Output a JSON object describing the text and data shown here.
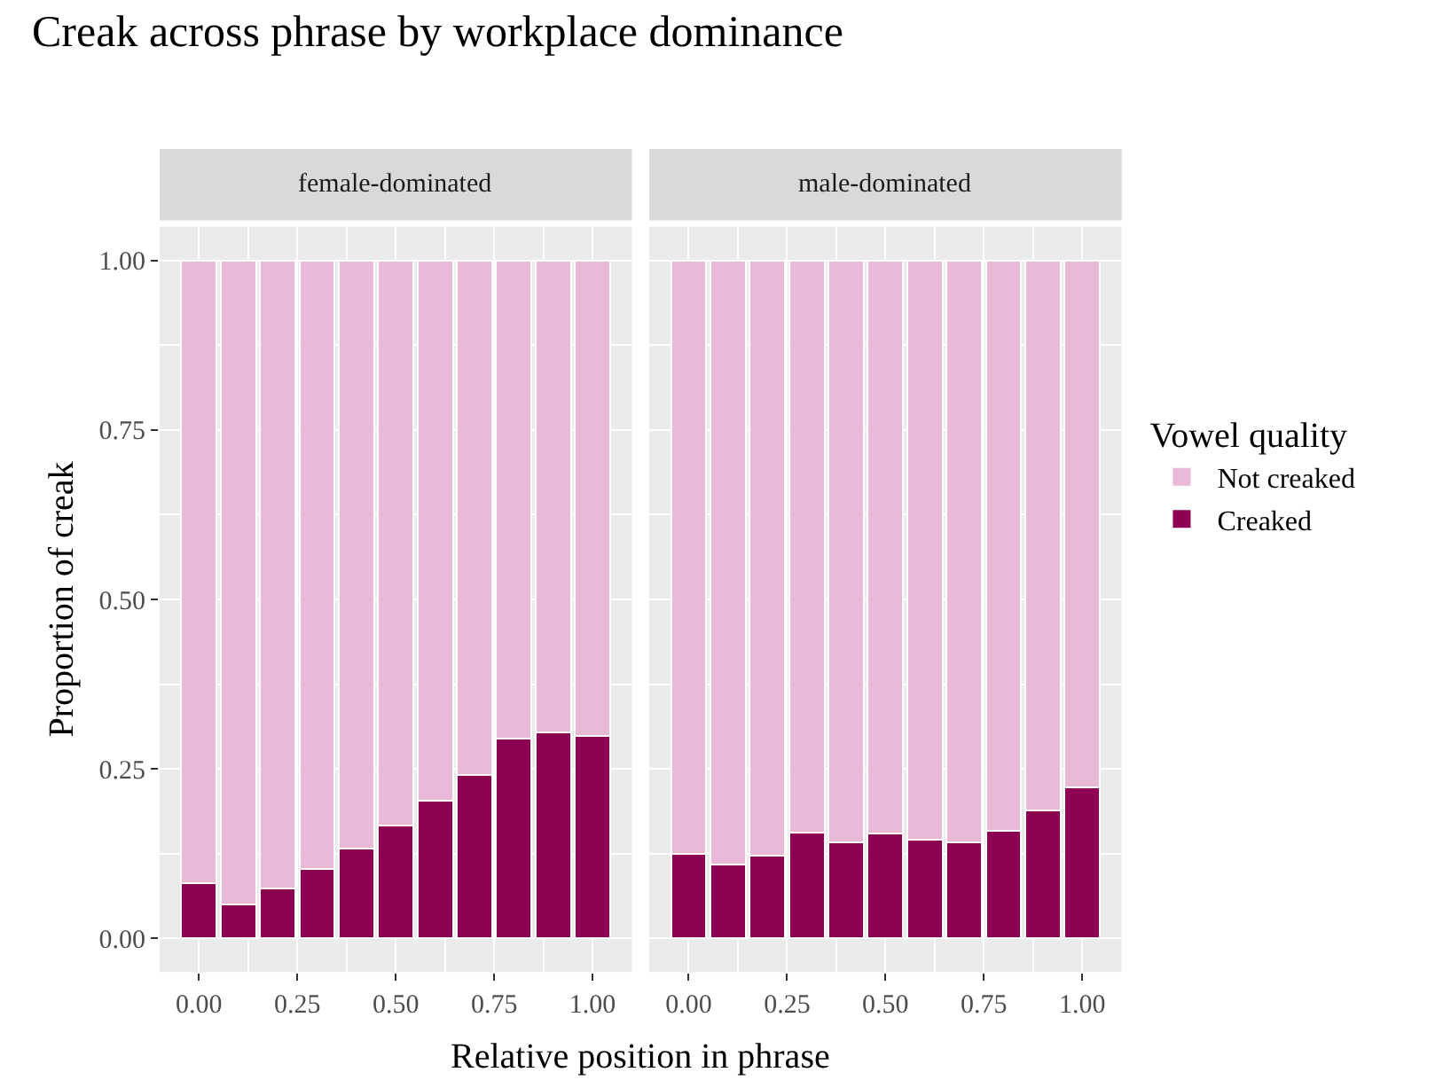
{
  "chart_data": [
    {
      "type": "bar",
      "title": "Creak across phrase by workplace dominance",
      "subtitle": "female-dominated",
      "xlabel": "Relative position in phrase",
      "ylabel": "Proportion of creak",
      "legend_title": "Vowel quality",
      "legend": "right",
      "stacked": true,
      "x": [
        0,
        0.1,
        0.2,
        0.3,
        0.4,
        0.5,
        0.6,
        0.7,
        0.8,
        0.9,
        1.0
      ],
      "series": [
        {
          "name": "Creaked",
          "color": "#8e0152",
          "values": [
            0.081,
            0.05,
            0.073,
            0.102,
            0.132,
            0.166,
            0.203,
            0.241,
            0.294,
            0.304,
            0.299
          ]
        },
        {
          "name": "Not creaked",
          "color": "#ebb9d8",
          "values": [
            0.919,
            0.95,
            0.927,
            0.898,
            0.868,
            0.834,
            0.797,
            0.759,
            0.706,
            0.696,
            0.701
          ]
        }
      ],
      "xlim": [
        -0.1,
        1.1
      ],
      "ylim": [
        -0.05,
        1.05
      ],
      "xticks": [
        {
          "value": 0,
          "label": "0.00"
        },
        {
          "value": 0.25,
          "label": "0.25"
        },
        {
          "value": 0.5,
          "label": "0.50"
        },
        {
          "value": 0.75,
          "label": "0.75"
        },
        {
          "value": 1,
          "label": "1.00"
        }
      ],
      "yticks": [
        {
          "value": 0,
          "label": "0.00"
        },
        {
          "value": 0.25,
          "label": "0.25"
        },
        {
          "value": 0.5,
          "label": "0.50"
        },
        {
          "value": 0.75,
          "label": "0.75"
        },
        {
          "value": 1,
          "label": "1.00"
        }
      ],
      "grid": true
    },
    {
      "type": "bar",
      "subtitle": "male-dominated",
      "stacked": true,
      "x": [
        0,
        0.1,
        0.2,
        0.3,
        0.4,
        0.5,
        0.6,
        0.7,
        0.8,
        0.9,
        1.0
      ],
      "series": [
        {
          "name": "Creaked",
          "color": "#8e0152",
          "values": [
            0.124,
            0.109,
            0.122,
            0.156,
            0.141,
            0.155,
            0.145,
            0.141,
            0.159,
            0.188,
            0.223
          ]
        },
        {
          "name": "Not creaked",
          "color": "#ebb9d8",
          "values": [
            0.876,
            0.891,
            0.878,
            0.844,
            0.859,
            0.845,
            0.855,
            0.859,
            0.841,
            0.812,
            0.777
          ]
        }
      ],
      "xlim": [
        -0.1,
        1.1
      ],
      "ylim": [
        -0.05,
        1.05
      ],
      "xticks": [
        {
          "value": 0,
          "label": "0.00"
        },
        {
          "value": 0.25,
          "label": "0.25"
        },
        {
          "value": 0.5,
          "label": "0.50"
        },
        {
          "value": 0.75,
          "label": "0.75"
        },
        {
          "value": 1,
          "label": "1.00"
        }
      ],
      "yticks": [
        {
          "value": 0,
          "label": "0.00"
        },
        {
          "value": 0.25,
          "label": "0.25"
        },
        {
          "value": 0.5,
          "label": "0.50"
        },
        {
          "value": 0.75,
          "label": "0.75"
        },
        {
          "value": 1,
          "label": "1.00"
        }
      ],
      "grid": true,
      "tick_labels": "x"
    }
  ]
}
